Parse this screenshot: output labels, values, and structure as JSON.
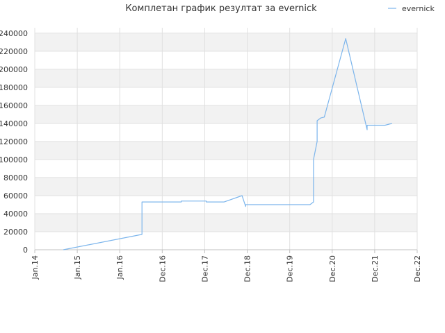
{
  "chart_data": {
    "type": "line",
    "title": "Комплетан график резултат за evernick",
    "xlabel": "",
    "ylabel": "",
    "x_ticks": [
      "Jan.14",
      "Jan.15",
      "Jan.16",
      "Dec.16",
      "Dec.17",
      "Dec.18",
      "Dec.19",
      "Dec.20",
      "Dec.21",
      "Dec.22"
    ],
    "y_ticks": [
      "0",
      "20000",
      "40000",
      "60000",
      "80000",
      "100000",
      "120000",
      "140000",
      "160000",
      "180000",
      "200000",
      "220000",
      "240000"
    ],
    "ylim": [
      0,
      240000
    ],
    "xlim": [
      "2014-01",
      "2022-12"
    ],
    "grid": true,
    "legend_position": "top-right",
    "series": [
      {
        "name": "evernick",
        "color": "#7cb5ec",
        "points": [
          [
            "2014-09",
            0
          ],
          [
            "2016-07",
            17000
          ],
          [
            "2016-07",
            53000
          ],
          [
            "2017-06",
            53000
          ],
          [
            "2017-06",
            54000
          ],
          [
            "2018-01",
            54000
          ],
          [
            "2018-01",
            53000
          ],
          [
            "2018-06",
            53000
          ],
          [
            "2018-11",
            60000
          ],
          [
            "2018-12",
            48000
          ],
          [
            "2018-12",
            50000
          ],
          [
            "2020-06",
            50000
          ],
          [
            "2020-07",
            53000
          ],
          [
            "2020-07",
            72000
          ],
          [
            "2020-07",
            100000
          ],
          [
            "2020-08",
            120000
          ],
          [
            "2020-08",
            143000
          ],
          [
            "2020-09",
            146000
          ],
          [
            "2020-10",
            147000
          ],
          [
            "2021-04",
            234000
          ],
          [
            "2021-10",
            133000
          ],
          [
            "2021-10",
            138000
          ],
          [
            "2022-03",
            138000
          ],
          [
            "2022-05",
            140000
          ]
        ]
      }
    ]
  }
}
